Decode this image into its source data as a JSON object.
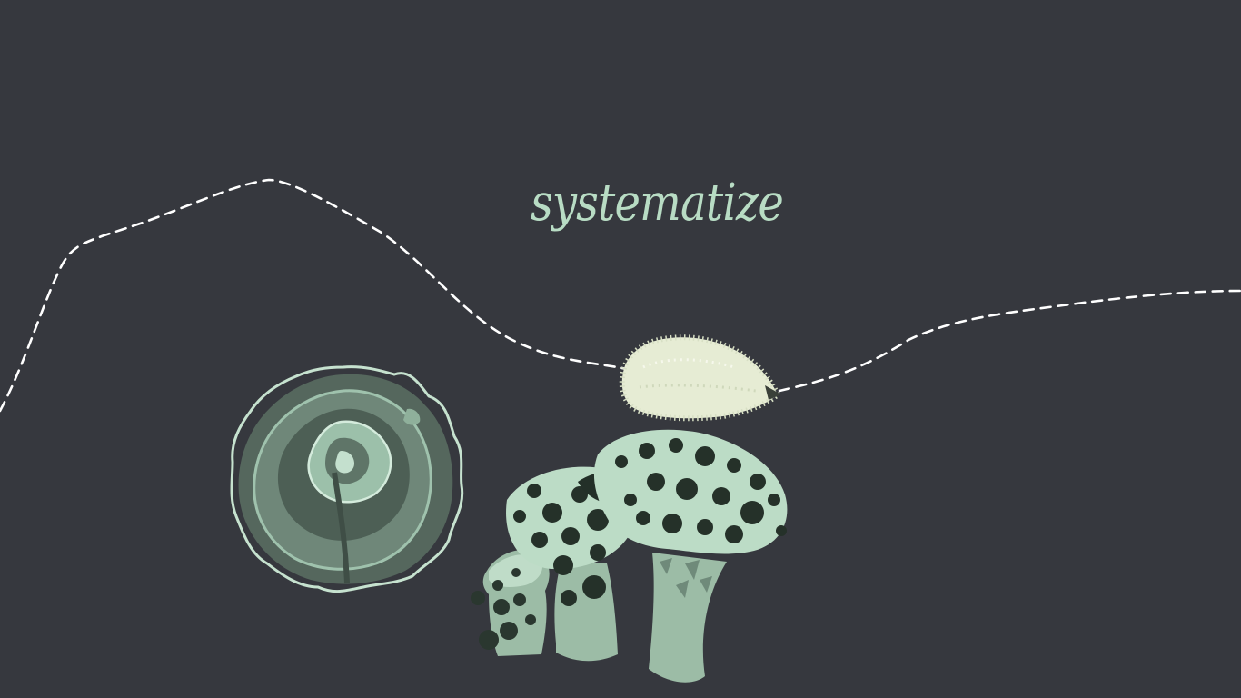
{
  "title": {
    "word": "systematize"
  },
  "colors": {
    "background": "#36383e",
    "text": "#b8dcc4",
    "trail": "#ffffff",
    "mint": "#bcdcc6",
    "sage": "#8fb09b",
    "dark_green": "#4d5f55",
    "spot": "#253129",
    "seed": "#e6ecd4"
  },
  "icons": {
    "trail": "dashed-trail-line",
    "bracket_fungus": "bracket-fungus-icon",
    "seed": "spiky-seed-icon",
    "mushrooms": "mushroom-cluster-icon"
  }
}
